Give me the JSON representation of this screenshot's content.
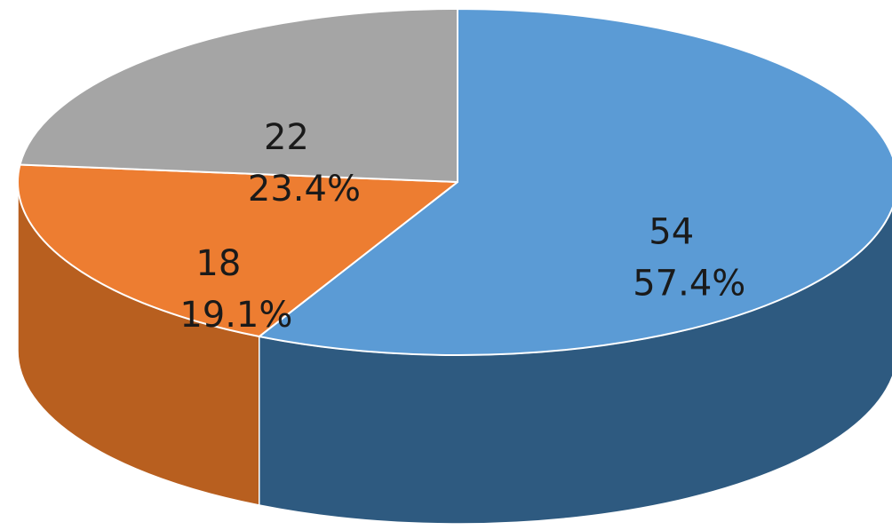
{
  "chart_data": {
    "type": "pie",
    "style": "3d",
    "title": "",
    "slices": [
      {
        "value": 54,
        "percent_label": "57.4%",
        "color": "#5B9BD5",
        "side_color": "#2E5A80"
      },
      {
        "value": 18,
        "percent_label": "19.1%",
        "color": "#ED7D31",
        "side_color": "#B85F1F"
      },
      {
        "value": 22,
        "percent_label": "23.4%",
        "color": "#A5A5A5",
        "side_color": "#6B6B6B"
      }
    ],
    "start_angle_deg": 0,
    "direction": "clockwise",
    "legend": "none"
  }
}
